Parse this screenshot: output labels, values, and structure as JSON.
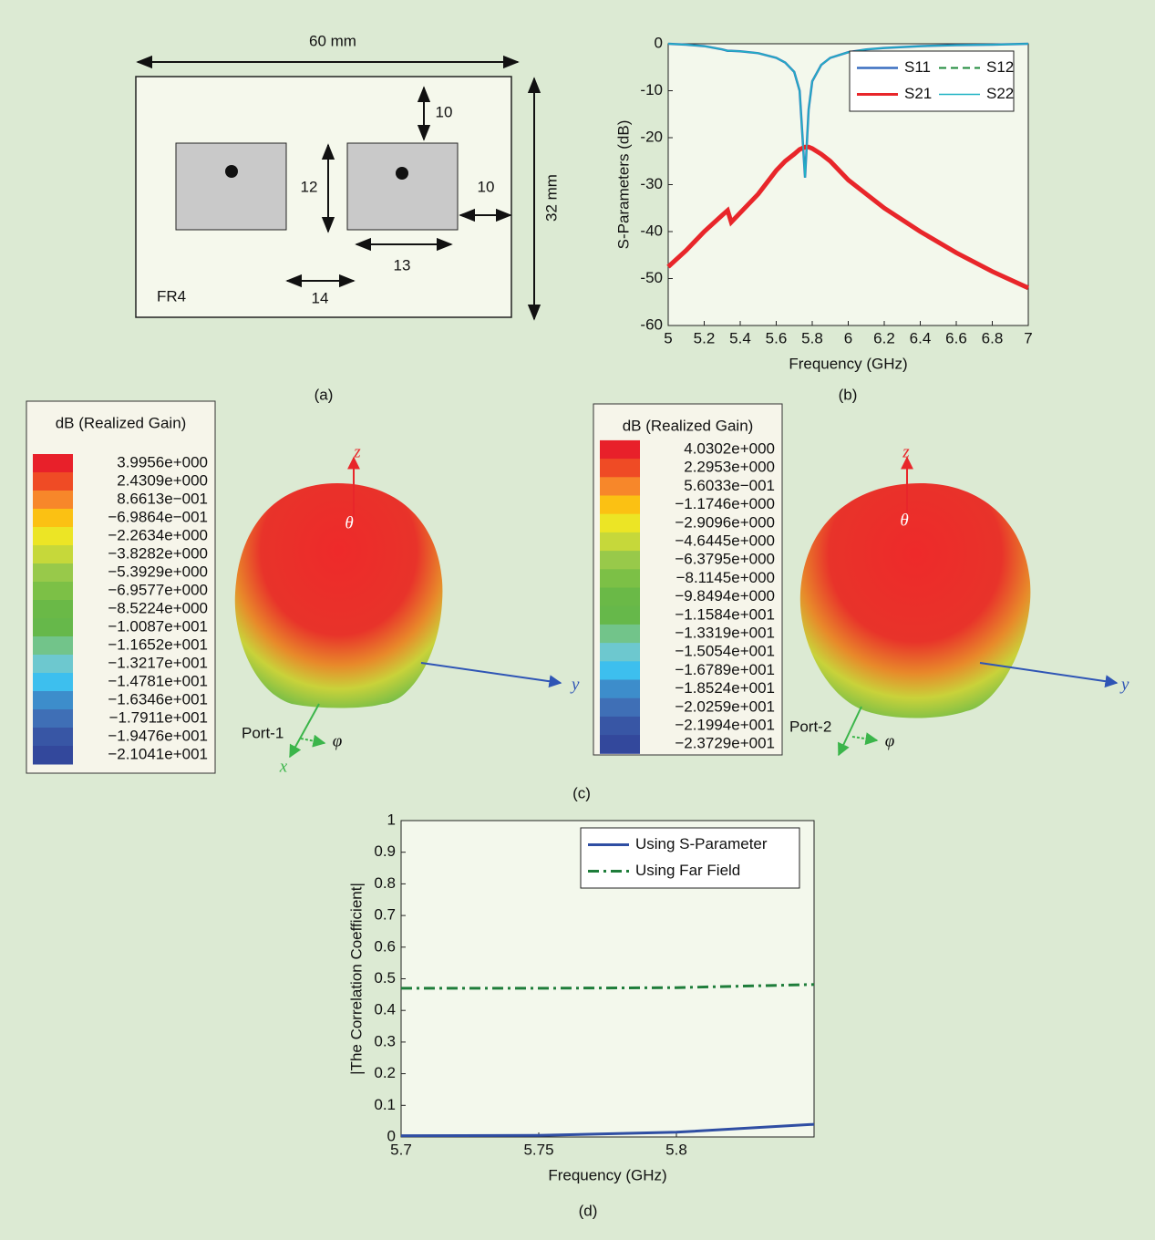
{
  "figure": {
    "labels": [
      "(a)",
      "(b)",
      "(c)",
      "(d)"
    ]
  },
  "diagram": {
    "width": "60 mm",
    "height": "32 mm",
    "substrate": "FR4",
    "dims": [
      "10",
      "12",
      "10",
      "13",
      "14"
    ]
  },
  "gain_maps": [
    {
      "title": "dB (Realized Gain)",
      "port": "Port-1",
      "axes": [
        "z",
        "θ",
        "y",
        "x",
        "φ"
      ],
      "levels": [
        "3.9956e+000",
        "2.4309e+000",
        "8.6613e−001",
        "−6.9864e−001",
        "−2.2634e+000",
        "−3.8282e+000",
        "−5.3929e+000",
        "−6.9577e+000",
        "−8.5224e+000",
        "−1.0087e+001",
        "−1.1652e+001",
        "−1.3217e+001",
        "−1.4781e+001",
        "−1.6346e+001",
        "−1.7911e+001",
        "−1.9476e+001",
        "−2.1041e+001"
      ],
      "colors": [
        "#e8202a",
        "#ef4b25",
        "#f7872a",
        "#fbc113",
        "#ece525",
        "#c6d83a",
        "#98c94a",
        "#7cc046",
        "#6ab947",
        "#66b84a",
        "#72c48a",
        "#6dc8cf",
        "#3dbfee",
        "#3d8dcb",
        "#3f6fb6",
        "#3856a5",
        "#33489c"
      ]
    },
    {
      "title": "dB (Realized Gain)",
      "port": "Port-2",
      "axes": [
        "z",
        "θ",
        "y",
        "φ"
      ],
      "levels": [
        "4.0302e+000",
        "2.2953e+000",
        "5.6033e−001",
        "−1.1746e+000",
        "−2.9096e+000",
        "−4.6445e+000",
        "−6.3795e+000",
        "−8.1145e+000",
        "−9.8494e+000",
        "−1.1584e+001",
        "−1.3319e+001",
        "−1.5054e+001",
        "−1.6789e+001",
        "−1.8524e+001",
        "−2.0259e+001",
        "−2.1994e+001",
        "−2.3729e+001"
      ],
      "colors": [
        "#e8202a",
        "#ef4b25",
        "#f7872a",
        "#fbc113",
        "#ece525",
        "#c6d83a",
        "#98c94a",
        "#7cc046",
        "#6ab947",
        "#66b84a",
        "#72c48a",
        "#6dc8cf",
        "#3dbfee",
        "#3d8dcb",
        "#3f6fb6",
        "#3856a5",
        "#33489c"
      ]
    }
  ],
  "chart_data": [
    {
      "type": "line",
      "x_label": "Frequency (GHz)",
      "y_label": "S-Parameters (dB)",
      "x": [
        5,
        5.1,
        5.2,
        5.3,
        5.33,
        5.35,
        5.4,
        5.5,
        5.6,
        5.65,
        5.7,
        5.73,
        5.76,
        5.78,
        5.8,
        5.85,
        5.9,
        6,
        6.1,
        6.2,
        6.4,
        6.6,
        6.8,
        7
      ],
      "series": [
        {
          "name": "S11",
          "color": "#3a6fc0",
          "width": 2.5,
          "linestyle": "solid",
          "values": [
            0,
            -0.2,
            -0.5,
            -1.2,
            -1.5,
            -1.5,
            -1.6,
            -2,
            -3,
            -4,
            -6,
            -10,
            -28.5,
            -14,
            -8,
            -4.5,
            -3,
            -1.8,
            -1.2,
            -0.9,
            -0.5,
            -0.3,
            -0.2,
            0
          ]
        },
        {
          "name": "S12",
          "color": "#1e8a3a",
          "width": 2,
          "linestyle": "dashed",
          "values": [
            -47.5,
            -44,
            -40,
            -36.5,
            -35.5,
            -38,
            -36,
            -32,
            -27,
            -25,
            -23.5,
            -22.5,
            -22,
            -22,
            -22.3,
            -23.5,
            -25,
            -29,
            -32,
            -35,
            -40,
            -44.5,
            -48.5,
            -52
          ]
        },
        {
          "name": "S21",
          "color": "#e8262a",
          "width": 5,
          "linestyle": "solid",
          "values": [
            -47.5,
            -44,
            -40,
            -36.5,
            -35.5,
            -38,
            -36,
            -32,
            -27,
            -25,
            -23.5,
            -22.5,
            -22,
            -22,
            -22.3,
            -23.5,
            -25,
            -29,
            -32,
            -35,
            -40,
            -44.5,
            -48.5,
            -52
          ]
        },
        {
          "name": "S22",
          "color": "#1fb3c4",
          "width": 1.5,
          "linestyle": "solid",
          "values": [
            0,
            -0.2,
            -0.5,
            -1.2,
            -1.5,
            -1.5,
            -1.6,
            -2,
            -3,
            -4,
            -6,
            -10,
            -28.5,
            -14,
            -8,
            -4.5,
            -3,
            -1.8,
            -1.2,
            -0.9,
            -0.5,
            -0.3,
            -0.2,
            0
          ]
        }
      ],
      "xlim": [
        5,
        7
      ],
      "xticks": [
        5,
        5.2,
        5.4,
        5.6,
        5.8,
        6,
        6.2,
        6.4,
        6.6,
        6.8,
        7
      ],
      "ylim": [
        -60,
        0
      ],
      "yticks": [
        -60,
        -50,
        -40,
        -30,
        -20,
        -10,
        0
      ],
      "legend": "upper right",
      "legend_columns": 2
    },
    {
      "type": "line",
      "x_label": "Frequency (GHz)",
      "y_label": "|The Correlation Coefficient|",
      "x": [
        5.7,
        5.75,
        5.8,
        5.85
      ],
      "series": [
        {
          "name": "Using S-Parameter",
          "color": "#2f4ea3",
          "width": 3,
          "linestyle": "solid",
          "values": [
            0.004,
            0.005,
            0.015,
            0.04
          ]
        },
        {
          "name": "Using Far Field",
          "color": "#1e7d3a",
          "width": 3,
          "linestyle": "dashdot",
          "values": [
            0.47,
            0.47,
            0.472,
            0.482
          ]
        }
      ],
      "xlim": [
        5.7,
        5.85
      ],
      "xticks": [
        5.7,
        5.75,
        5.8
      ],
      "ylim": [
        0,
        1
      ],
      "yticks": [
        0,
        0.1,
        0.2,
        0.3,
        0.4,
        0.5,
        0.6,
        0.7,
        0.8,
        0.9,
        1
      ],
      "legend": "upper right",
      "legend_columns": 1
    }
  ]
}
